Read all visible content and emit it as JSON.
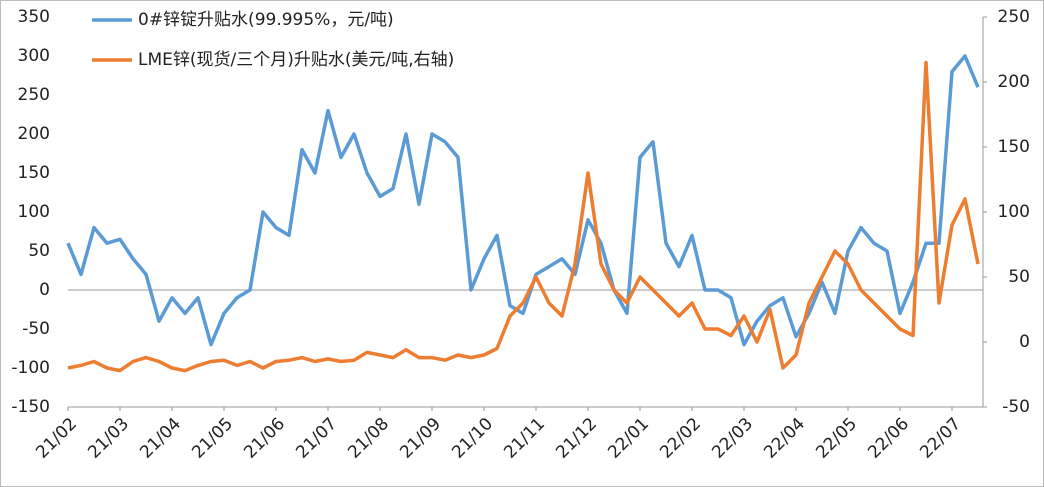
{
  "chart_data": {
    "type": "line",
    "legend": "top-left",
    "categories": [
      "21/02",
      null,
      null,
      null,
      "21/03",
      null,
      null,
      null,
      "21/04",
      null,
      null,
      null,
      "21/05",
      null,
      null,
      null,
      "21/06",
      null,
      null,
      null,
      "21/07",
      null,
      null,
      null,
      "21/08",
      null,
      null,
      null,
      "21/09",
      null,
      null,
      null,
      "21/10",
      null,
      null,
      null,
      "21/11",
      null,
      null,
      null,
      "21/12",
      null,
      null,
      null,
      "22/01",
      null,
      null,
      null,
      "22/02",
      null,
      null,
      null,
      "22/03",
      null,
      null,
      null,
      "22/04",
      null,
      null,
      null,
      "22/05",
      null,
      null,
      null,
      "22/06",
      null,
      null,
      null,
      "22/07",
      null,
      null
    ],
    "ylim": [
      -150,
      350
    ],
    "yticks": [
      -150,
      -100,
      -50,
      0,
      50,
      100,
      150,
      200,
      250,
      300,
      350
    ],
    "y2lim": [
      -50,
      250
    ],
    "y2ticks": [
      -50,
      0,
      50,
      100,
      150,
      200,
      250
    ],
    "series": [
      {
        "name": "0#锌锭升贴水(99.995%，元/吨)",
        "color": "#5b9bd5",
        "axis": "y",
        "values": [
          60,
          20,
          80,
          60,
          65,
          40,
          20,
          -40,
          -10,
          -30,
          -10,
          -70,
          -30,
          -10,
          0,
          100,
          80,
          70,
          180,
          150,
          230,
          170,
          200,
          150,
          120,
          130,
          200,
          110,
          200,
          190,
          170,
          0,
          40,
          70,
          -20,
          -30,
          20,
          30,
          40,
          20,
          90,
          60,
          0,
          -30,
          170,
          190,
          60,
          30,
          70,
          0,
          0,
          -10,
          -70,
          -40,
          -20,
          -10,
          -60,
          -30,
          10,
          -30,
          50,
          80,
          60,
          50,
          -30,
          10,
          60,
          60,
          280,
          300,
          260
        ]
      },
      {
        "name": "LME锌(现货/三个月)升贴水(美元/吨,右轴)",
        "color": "#ed7d31",
        "axis": "y2",
        "values": [
          -20,
          -18,
          -15,
          -20,
          -22,
          -15,
          -12,
          -15,
          -20,
          -22,
          -18,
          -15,
          -14,
          -18,
          -15,
          -20,
          -15,
          -14,
          -12,
          -15,
          -13,
          -15,
          -14,
          -8,
          -10,
          -12,
          -6,
          -12,
          -12,
          -14,
          -10,
          -12,
          -10,
          -5,
          20,
          30,
          50,
          30,
          20,
          60,
          130,
          60,
          40,
          30,
          50,
          40,
          30,
          20,
          30,
          10,
          10,
          5,
          20,
          0,
          25,
          -20,
          -10,
          30,
          50,
          70,
          60,
          40,
          30,
          20,
          10,
          5,
          215,
          30,
          90,
          110,
          60
        ]
      }
    ]
  }
}
